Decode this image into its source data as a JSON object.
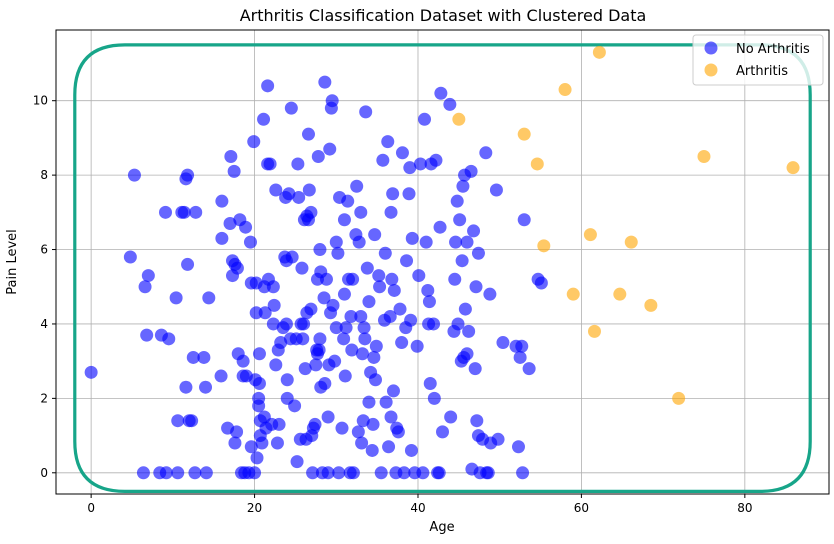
{
  "chart_data": {
    "type": "scatter",
    "title": "Arthritis Classification Dataset with Clustered Data",
    "xlabel": "Age",
    "ylabel": "Pain Level",
    "xlim": [
      -4.3,
      90.3
    ],
    "ylim": [
      -0.57,
      11.9
    ],
    "xticks": [
      0,
      20,
      40,
      60,
      80
    ],
    "yticks": [
      0,
      2,
      4,
      6,
      8,
      10
    ],
    "grid": true,
    "legend_position": "top-right",
    "cluster_outline": {
      "x_range": [
        -2,
        88
      ],
      "y_range": [
        -0.5,
        11.5
      ],
      "color": "#17a589"
    },
    "series": [
      {
        "name": "No Arthritis",
        "color": "#0000ff",
        "points": [
          [
            0,
            2.7
          ],
          [
            4.8,
            5.8
          ],
          [
            5.3,
            8.0
          ],
          [
            6.4,
            0
          ],
          [
            6.6,
            5.0
          ],
          [
            6.8,
            3.7
          ],
          [
            7.0,
            5.3
          ],
          [
            8.4,
            0
          ],
          [
            8.6,
            3.7
          ],
          [
            9.1,
            7.0
          ],
          [
            9.2,
            0
          ],
          [
            9.5,
            3.6
          ],
          [
            10.4,
            4.7
          ],
          [
            10.6,
            1.4
          ],
          [
            10.6,
            0
          ],
          [
            11.1,
            7.0
          ],
          [
            11.4,
            7.0
          ],
          [
            11.6,
            7.9
          ],
          [
            11.6,
            2.3
          ],
          [
            11.8,
            5.6
          ],
          [
            11.8,
            8.0
          ],
          [
            12.0,
            1.4
          ],
          [
            12.3,
            1.4
          ],
          [
            12.5,
            3.1
          ],
          [
            12.7,
            0
          ],
          [
            12.8,
            7.0
          ],
          [
            13.8,
            3.1
          ],
          [
            14.0,
            2.3
          ],
          [
            14.1,
            0
          ],
          [
            14.4,
            4.7
          ],
          [
            15.9,
            2.6
          ],
          [
            16.0,
            6.3
          ],
          [
            16.0,
            7.3
          ],
          [
            16.7,
            1.2
          ],
          [
            17.0,
            6.7
          ],
          [
            17.1,
            8.5
          ],
          [
            17.3,
            5.3
          ],
          [
            17.3,
            5.7
          ],
          [
            17.5,
            8.1
          ],
          [
            17.6,
            5.6
          ],
          [
            17.6,
            0.8
          ],
          [
            17.8,
            1.1
          ],
          [
            17.9,
            5.5
          ],
          [
            18.2,
            6.8
          ],
          [
            18.4,
            0
          ],
          [
            18.6,
            3.0
          ],
          [
            18.6,
            2.6
          ],
          [
            18.8,
            0
          ],
          [
            18.9,
            6.6
          ],
          [
            19.0,
            2.6
          ],
          [
            19.3,
            0
          ],
          [
            19.5,
            6.2
          ],
          [
            19.6,
            5.1
          ],
          [
            19.6,
            0.7
          ],
          [
            19.9,
            8.9
          ],
          [
            20.0,
            0
          ],
          [
            20.1,
            2.5
          ],
          [
            20.2,
            5.1
          ],
          [
            20.2,
            4.3
          ],
          [
            20.3,
            0.4
          ],
          [
            20.5,
            2.0
          ],
          [
            20.5,
            1.8
          ],
          [
            20.6,
            2.4
          ],
          [
            20.6,
            3.2
          ],
          [
            20.7,
            1.4
          ],
          [
            20.7,
            1.0
          ],
          [
            20.9,
            0.8
          ],
          [
            21.1,
            9.5
          ],
          [
            21.2,
            1.5
          ],
          [
            21.2,
            5.0
          ],
          [
            21.3,
            4.3
          ],
          [
            21.4,
            1.2
          ],
          [
            21.6,
            10.4
          ],
          [
            21.6,
            8.3
          ],
          [
            21.7,
            5.2
          ],
          [
            21.9,
            8.3
          ],
          [
            22.1,
            1.3
          ],
          [
            22.3,
            5.0
          ],
          [
            22.3,
            4.0
          ],
          [
            22.4,
            4.5
          ],
          [
            22.6,
            7.6
          ],
          [
            22.6,
            2.9
          ],
          [
            22.8,
            0.8
          ],
          [
            22.9,
            3.3
          ],
          [
            23.2,
            3.5
          ],
          [
            23.5,
            3.9
          ],
          [
            23.7,
            5.8
          ],
          [
            23.8,
            7.4
          ],
          [
            23.9,
            4.0
          ],
          [
            23.9,
            5.7
          ],
          [
            24.0,
            2.5
          ],
          [
            24.2,
            7.5
          ],
          [
            24.4,
            3.6
          ],
          [
            24.5,
            9.8
          ],
          [
            24.6,
            5.8
          ],
          [
            24.9,
            1.8
          ],
          [
            25.1,
            3.6
          ],
          [
            25.2,
            0.3
          ],
          [
            25.3,
            8.3
          ],
          [
            25.4,
            7.4
          ],
          [
            25.6,
            0.9
          ],
          [
            25.7,
            4.0
          ],
          [
            25.8,
            5.5
          ],
          [
            25.9,
            3.6
          ],
          [
            26.1,
            6.8
          ],
          [
            26.2,
            2.8
          ],
          [
            26.3,
            0.9
          ],
          [
            26.4,
            6.9
          ],
          [
            26.4,
            4.3
          ],
          [
            26.6,
            9.1
          ],
          [
            26.6,
            6.8
          ],
          [
            26.7,
            7.6
          ],
          [
            26.9,
            4.4
          ],
          [
            26.9,
            7.0
          ],
          [
            27.0,
            1.0
          ],
          [
            27.1,
            0
          ],
          [
            27.2,
            1.2
          ],
          [
            27.4,
            1.3
          ],
          [
            27.5,
            2.9
          ],
          [
            27.6,
            3.3
          ],
          [
            27.7,
            5.2
          ],
          [
            27.7,
            3.2
          ],
          [
            27.8,
            8.5
          ],
          [
            27.9,
            3.3
          ],
          [
            28.0,
            3.6
          ],
          [
            28.1,
            2.3
          ],
          [
            28.1,
            5.4
          ],
          [
            28.3,
            0
          ],
          [
            28.5,
            4.7
          ],
          [
            28.6,
            10.5
          ],
          [
            28.6,
            2.4
          ],
          [
            28.8,
            5.2
          ],
          [
            29.0,
            0
          ],
          [
            29.1,
            2.9
          ],
          [
            29.2,
            8.7
          ],
          [
            29.3,
            4.3
          ],
          [
            29.4,
            9.8
          ],
          [
            29.5,
            10.0
          ],
          [
            29.6,
            4.5
          ],
          [
            29.8,
            3.0
          ],
          [
            30.0,
            3.9
          ],
          [
            30.2,
            5.9
          ],
          [
            30.3,
            0
          ],
          [
            30.4,
            7.4
          ],
          [
            30.7,
            1.2
          ],
          [
            30.9,
            3.6
          ],
          [
            31.0,
            6.8
          ],
          [
            31.1,
            2.6
          ],
          [
            31.2,
            3.9
          ],
          [
            31.4,
            7.3
          ],
          [
            31.7,
            0
          ],
          [
            31.8,
            4.2
          ],
          [
            31.9,
            3.3
          ],
          [
            32.0,
            5.2
          ],
          [
            32.1,
            0
          ],
          [
            32.4,
            6.4
          ],
          [
            32.5,
            7.7
          ],
          [
            32.7,
            1.1
          ],
          [
            32.8,
            6.2
          ],
          [
            33.0,
            4.2
          ],
          [
            33.1,
            0.8
          ],
          [
            33.2,
            3.2
          ],
          [
            33.3,
            1.4
          ],
          [
            33.4,
            3.9
          ],
          [
            33.5,
            3.6
          ],
          [
            33.6,
            9.7
          ],
          [
            33.8,
            5.5
          ],
          [
            34.0,
            1.9
          ],
          [
            34.2,
            2.7
          ],
          [
            34.4,
            0.6
          ],
          [
            34.5,
            1.3
          ],
          [
            34.6,
            3.1
          ],
          [
            34.7,
            6.4
          ],
          [
            34.8,
            2.5
          ],
          [
            34.9,
            3.4
          ],
          [
            35.2,
            5.3
          ],
          [
            35.3,
            5.0
          ],
          [
            35.5,
            0
          ],
          [
            35.7,
            8.4
          ],
          [
            35.9,
            4.1
          ],
          [
            36.1,
            1.9
          ],
          [
            36.3,
            8.9
          ],
          [
            36.4,
            0.7
          ],
          [
            36.6,
            4.2
          ],
          [
            36.7,
            1.5
          ],
          [
            36.7,
            7.0
          ],
          [
            36.8,
            5.2
          ],
          [
            36.9,
            7.5
          ],
          [
            37.1,
            4.9
          ],
          [
            37.3,
            0
          ],
          [
            37.4,
            1.2
          ],
          [
            37.6,
            1.1
          ],
          [
            37.8,
            4.4
          ],
          [
            38.1,
            8.6
          ],
          [
            38.3,
            0
          ],
          [
            38.5,
            3.9
          ],
          [
            38.6,
            5.7
          ],
          [
            38.9,
            7.5
          ],
          [
            39.1,
            4.1
          ],
          [
            39.2,
            0.6
          ],
          [
            39.3,
            6.3
          ],
          [
            39.6,
            0
          ],
          [
            39.9,
            3.4
          ],
          [
            40.1,
            5.3
          ],
          [
            40.3,
            8.3
          ],
          [
            40.6,
            0
          ],
          [
            40.8,
            9.5
          ],
          [
            41.0,
            6.2
          ],
          [
            41.2,
            4.9
          ],
          [
            41.3,
            4.0
          ],
          [
            41.4,
            4.6
          ],
          [
            41.5,
            2.4
          ],
          [
            41.6,
            8.3
          ],
          [
            41.9,
            4.0
          ],
          [
            42.2,
            8.4
          ],
          [
            42.4,
            0
          ],
          [
            42.6,
            0
          ],
          [
            42.7,
            6.6
          ],
          [
            42.8,
            10.2
          ],
          [
            43.0,
            1.1
          ],
          [
            43.9,
            9.9
          ],
          [
            44.4,
            3.8
          ],
          [
            44.5,
            5.2
          ],
          [
            44.6,
            6.2
          ],
          [
            44.8,
            7.3
          ],
          [
            44.9,
            4.0
          ],
          [
            45.1,
            6.8
          ],
          [
            45.3,
            3.0
          ],
          [
            45.4,
            5.7
          ],
          [
            45.5,
            7.7
          ],
          [
            45.6,
            3.1
          ],
          [
            45.7,
            8.0
          ],
          [
            45.8,
            4.4
          ],
          [
            46.0,
            3.2
          ],
          [
            46.0,
            6.2
          ],
          [
            46.2,
            3.8
          ],
          [
            46.5,
            8.1
          ],
          [
            46.6,
            0.1
          ],
          [
            46.8,
            6.5
          ],
          [
            47.0,
            2.8
          ],
          [
            47.1,
            5.0
          ],
          [
            47.2,
            1.4
          ],
          [
            47.4,
            5.9
          ],
          [
            47.4,
            1.0
          ],
          [
            47.6,
            0
          ],
          [
            47.9,
            0.9
          ],
          [
            48.3,
            8.6
          ],
          [
            48.4,
            0
          ],
          [
            48.6,
            0
          ],
          [
            48.8,
            4.8
          ],
          [
            48.9,
            0.8
          ],
          [
            49.6,
            7.6
          ],
          [
            49.8,
            0.9
          ],
          [
            50.4,
            3.5
          ],
          [
            52.0,
            3.4
          ],
          [
            52.3,
            0.7
          ],
          [
            52.5,
            3.1
          ],
          [
            52.7,
            3.4
          ],
          [
            52.8,
            0
          ],
          [
            53.0,
            6.8
          ],
          [
            53.6,
            2.8
          ],
          [
            54.7,
            5.2
          ],
          [
            55.1,
            5.1
          ],
          [
            36.0,
            5.9
          ],
          [
            31.5,
            5.2
          ],
          [
            38.0,
            3.5
          ],
          [
            26.0,
            4.0
          ],
          [
            34.0,
            4.6
          ],
          [
            29.0,
            1.5
          ],
          [
            23.0,
            1.3
          ],
          [
            18.0,
            3.2
          ],
          [
            30.0,
            6.2
          ],
          [
            42.0,
            2.0
          ],
          [
            33.0,
            7.0
          ],
          [
            28.0,
            6.0
          ],
          [
            39.0,
            8.2
          ],
          [
            24.0,
            2.0
          ],
          [
            31.0,
            4.8
          ],
          [
            44.0,
            1.5
          ],
          [
            37.0,
            2.2
          ]
        ]
      },
      {
        "name": "Arthritis",
        "color": "#ffa500",
        "points": [
          [
            45.0,
            9.5
          ],
          [
            53.0,
            9.1
          ],
          [
            54.6,
            8.3
          ],
          [
            55.4,
            6.1
          ],
          [
            58.0,
            10.3
          ],
          [
            59.0,
            4.8
          ],
          [
            61.1,
            6.4
          ],
          [
            61.6,
            3.8
          ],
          [
            62.2,
            11.3
          ],
          [
            64.7,
            4.8
          ],
          [
            66.1,
            6.2
          ],
          [
            68.5,
            4.5
          ],
          [
            71.9,
            2.0
          ],
          [
            75.0,
            8.5
          ],
          [
            85.9,
            8.2
          ]
        ]
      }
    ]
  }
}
